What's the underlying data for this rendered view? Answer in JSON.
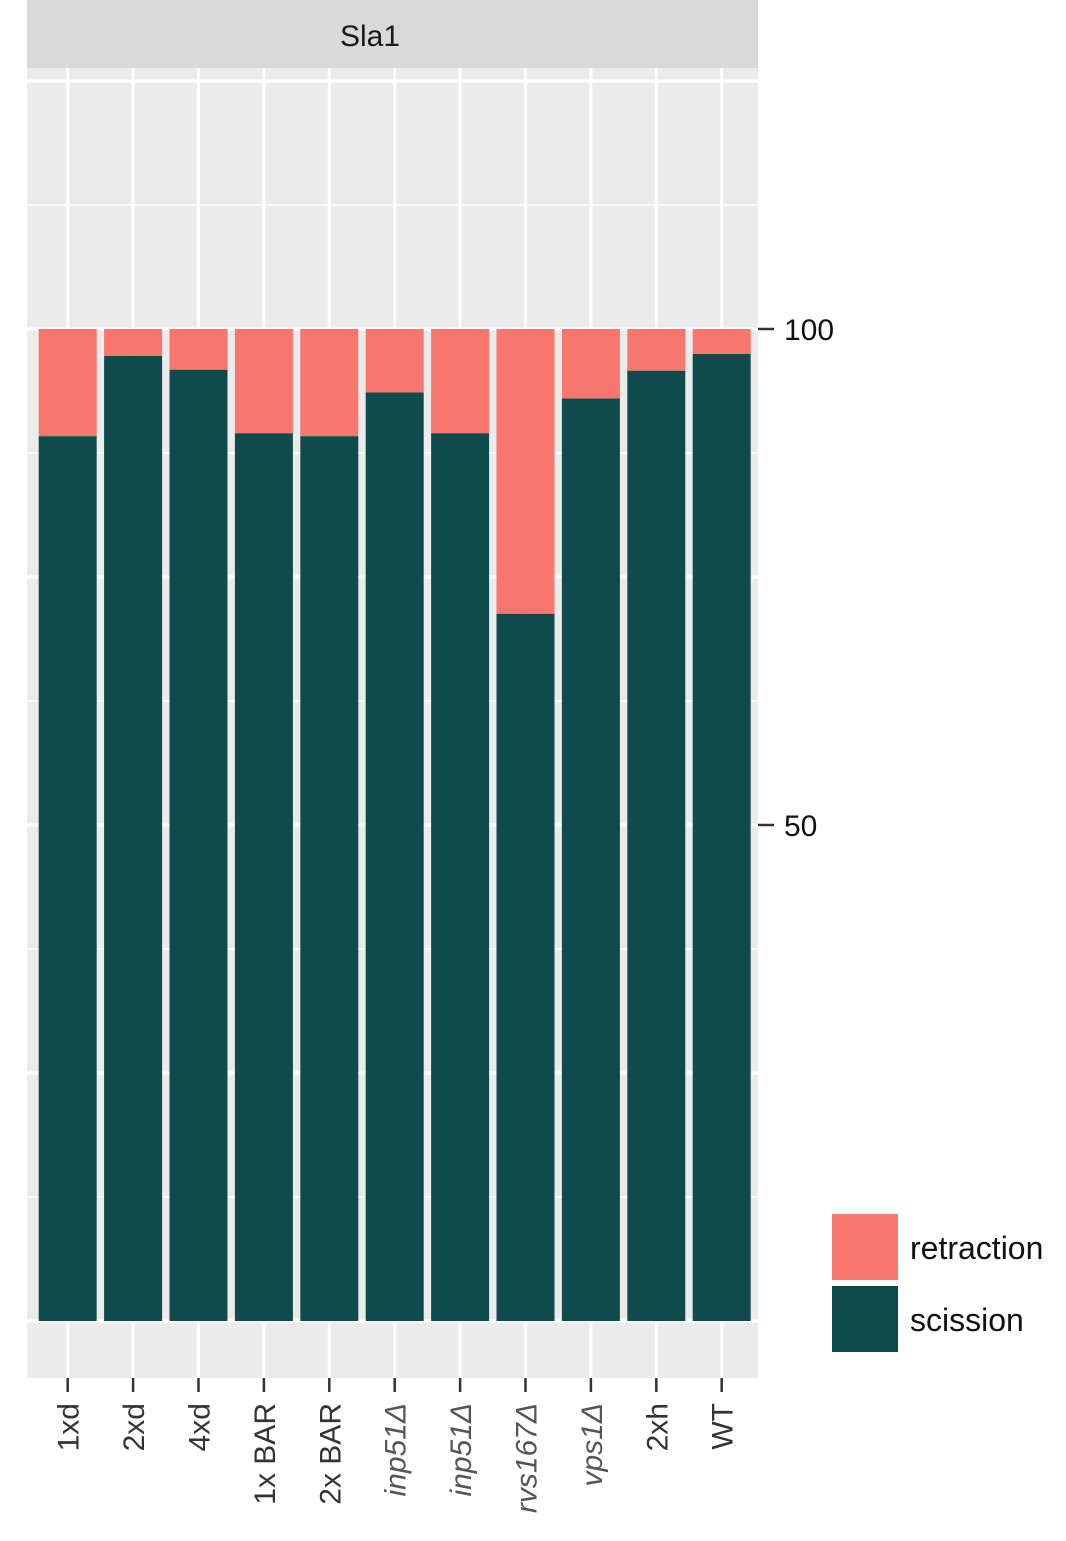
{
  "chart_data": {
    "type": "bar",
    "stacked": true,
    "facet_label": "Sla1",
    "categories": [
      "1xd",
      "2xd",
      "4xd",
      "1x BAR",
      "2x BAR",
      "inp51Δ",
      "inp51Δ",
      "rvs167Δ",
      "vps1Δ",
      "2xh",
      "WT"
    ],
    "italic_categories": [
      false,
      false,
      false,
      false,
      false,
      true,
      true,
      true,
      true,
      false,
      false
    ],
    "series": [
      {
        "name": "scission",
        "color": "#0f4b4d",
        "values": [
          89.2,
          97.3,
          95.9,
          89.5,
          89.2,
          93.6,
          89.5,
          71.3,
          93.0,
          95.8,
          97.5
        ]
      },
      {
        "name": "retraction",
        "color": "#f8766d",
        "values": [
          10.8,
          2.7,
          4.1,
          10.5,
          10.8,
          6.4,
          10.5,
          28.7,
          7.0,
          4.2,
          2.5
        ]
      }
    ],
    "y_ticks": [
      {
        "value": 50,
        "label": "50"
      },
      {
        "value": 100,
        "label": "100"
      }
    ],
    "ylim": [
      0,
      130
    ],
    "y_axis_side": "right",
    "grid": true,
    "legend_position": "bottom-right"
  }
}
